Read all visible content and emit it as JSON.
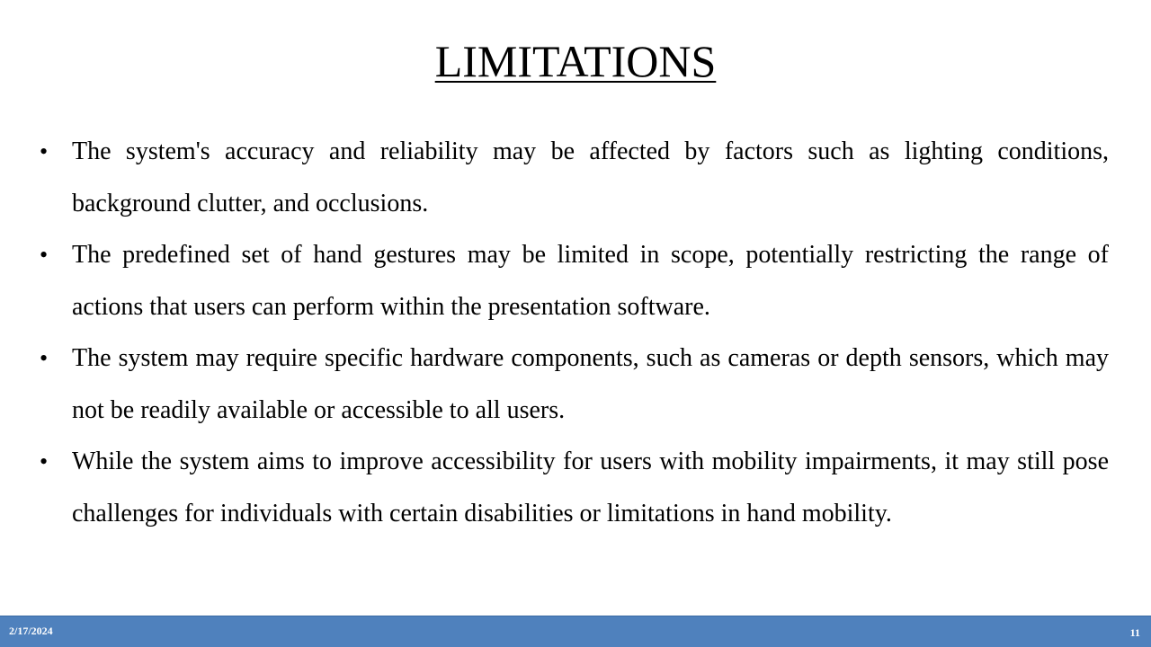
{
  "slide": {
    "title": "LIMITATIONS",
    "bullets": [
      "The system's accuracy and reliability may be affected by factors such as lighting conditions, background clutter, and occlusions.",
      "The predefined set of hand gestures may be limited in scope, potentially restricting the range of actions that users can perform within the presentation software.",
      "The system may require specific hardware components, such as cameras or depth sensors, which may not be readily available or accessible to all users.",
      "While the system aims to improve accessibility for users with mobility impairments, it may still pose challenges for individuals with certain disabilities or limitations in hand mobility."
    ],
    "bullet_symbol": "•"
  },
  "footer": {
    "date": "2/17/2024",
    "page_number": "11",
    "bar_color": "#4f81bd"
  }
}
